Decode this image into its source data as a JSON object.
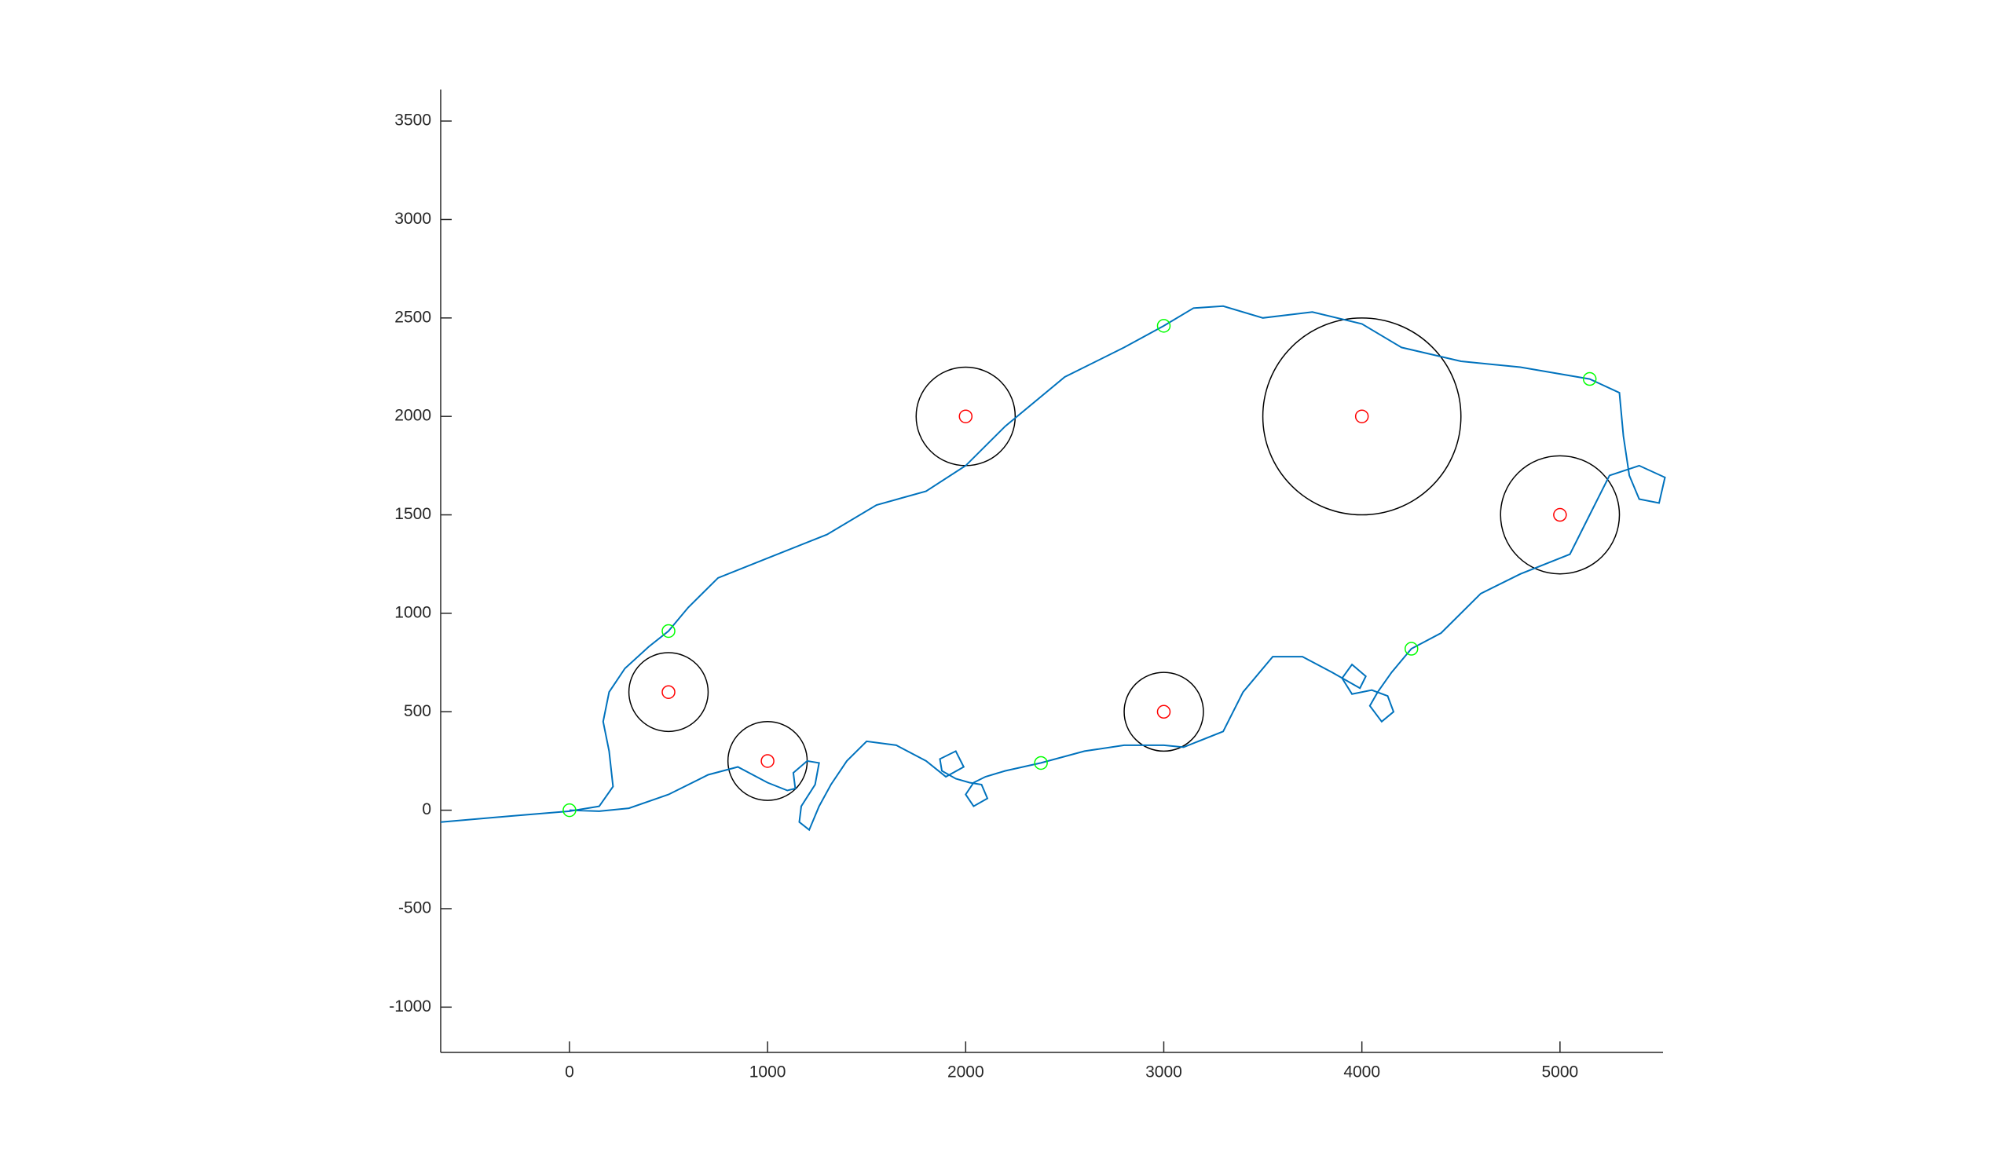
{
  "chart_data": {
    "type": "line",
    "xlim": [
      -650,
      5520
    ],
    "ylim": [
      -1230,
      3660
    ],
    "xticks": [
      0,
      1000,
      2000,
      3000,
      4000,
      5000
    ],
    "yticks": [
      -1000,
      -500,
      0,
      500,
      1000,
      1500,
      2000,
      2500,
      3000,
      3500
    ],
    "path": {
      "color": "#0072bd",
      "x": [
        -650,
        -300,
        0,
        150,
        220,
        200,
        170,
        200,
        280,
        400,
        500,
        600,
        750,
        1000,
        1300,
        1550,
        1800,
        2000,
        2200,
        2500,
        2800,
        3000,
        3150,
        3300,
        3500,
        3750,
        4000,
        4200,
        4500,
        4800,
        5150,
        5300,
        5320,
        5350,
        5400,
        5500,
        5530,
        5400,
        5250,
        5150,
        5050,
        4800,
        4600,
        4400,
        4250,
        4150,
        4080,
        4040,
        4100,
        4160,
        4130,
        4050,
        3950,
        3900,
        3950,
        4020,
        3990,
        3850,
        3700,
        3550,
        3400,
        3300,
        3100,
        3000,
        2800,
        2600,
        2380,
        2200,
        2100,
        2040,
        2000,
        2040,
        2110,
        2080,
        2020,
        1950,
        1880,
        1870,
        1950,
        1990,
        1900,
        1800,
        1650,
        1500,
        1400,
        1320,
        1260,
        1210,
        1160,
        1170,
        1240,
        1260,
        1200,
        1130,
        1140,
        1100,
        1000,
        850,
        700,
        500,
        300,
        150,
        0
      ],
      "y": [
        -60,
        -30,
        -5,
        20,
        120,
        300,
        450,
        600,
        720,
        830,
        910,
        1030,
        1180,
        1280,
        1400,
        1550,
        1620,
        1750,
        1950,
        2200,
        2350,
        2460,
        2550,
        2560,
        2500,
        2530,
        2470,
        2350,
        2280,
        2250,
        2190,
        2120,
        1900,
        1700,
        1580,
        1560,
        1690,
        1750,
        1700,
        1500,
        1300,
        1200,
        1100,
        900,
        820,
        700,
        600,
        530,
        450,
        500,
        580,
        610,
        590,
        670,
        740,
        680,
        620,
        700,
        780,
        780,
        600,
        400,
        320,
        330,
        330,
        300,
        240,
        200,
        170,
        140,
        80,
        20,
        60,
        130,
        140,
        160,
        200,
        260,
        300,
        220,
        170,
        250,
        330,
        350,
        250,
        130,
        20,
        -100,
        -60,
        20,
        130,
        240,
        250,
        190,
        110,
        100,
        140,
        220,
        180,
        80,
        10,
        -5,
        0
      ]
    },
    "waypoints": {
      "color": "#00ff00",
      "x": [
        0,
        500,
        3000,
        5150,
        4250,
        2380
      ],
      "y": [
        0,
        910,
        2460,
        2190,
        820,
        240
      ]
    },
    "obstacles": {
      "color": "#000000",
      "center_color": "#ff0000",
      "x": [
        500,
        1000,
        2000,
        3000,
        4000,
        5000
      ],
      "y": [
        600,
        250,
        2000,
        500,
        2000,
        1500
      ],
      "r": [
        200,
        200,
        250,
        200,
        500,
        300
      ]
    }
  }
}
